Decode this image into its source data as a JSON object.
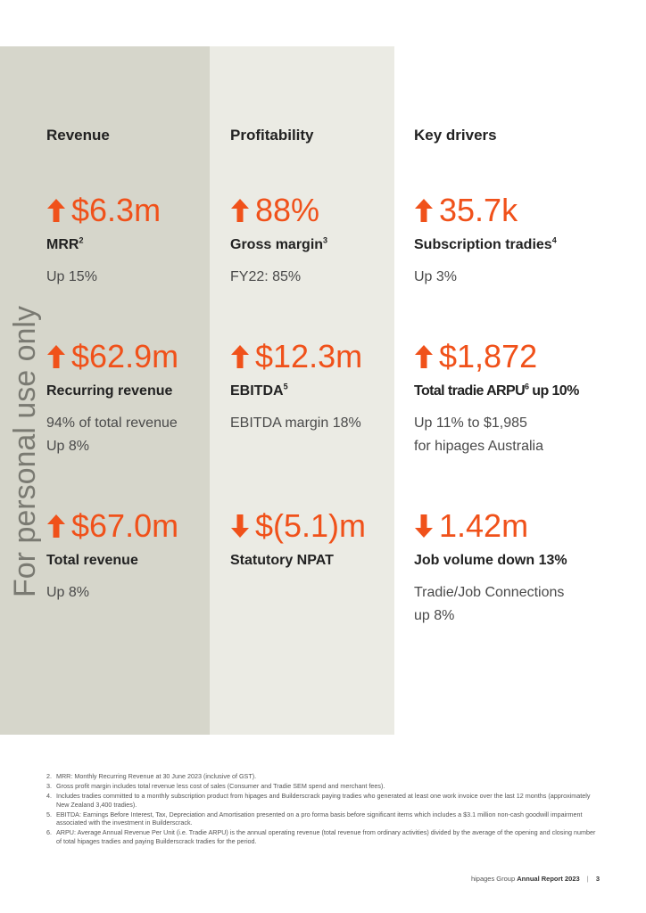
{
  "watermark": "For personal use only",
  "columns": [
    {
      "heading": "Revenue",
      "metrics": [
        {
          "direction": "up",
          "value": "$6.3m",
          "label": "MRR",
          "sup": "2",
          "sub": [
            "Up 15%"
          ]
        },
        {
          "direction": "up",
          "value": "$62.9m",
          "label": "Recurring revenue",
          "sup": "",
          "sub": [
            "94% of total revenue",
            "Up 8%"
          ]
        },
        {
          "direction": "up",
          "value": "$67.0m",
          "label": "Total revenue",
          "sup": "",
          "sub": [
            "Up 8%"
          ]
        }
      ]
    },
    {
      "heading": "Profitability",
      "metrics": [
        {
          "direction": "up",
          "value": "88%",
          "label": "Gross margin",
          "sup": "3",
          "sub": [
            "FY22: 85%"
          ]
        },
        {
          "direction": "up",
          "value": "$12.3m",
          "label": "EBITDA",
          "sup": "5",
          "sub": [
            "EBITDA margin 18%"
          ]
        },
        {
          "direction": "down",
          "value": "$(5.1)m",
          "label": "Statutory NPAT",
          "sup": "",
          "sub": []
        }
      ]
    },
    {
      "heading": "Key drivers",
      "metrics": [
        {
          "direction": "up",
          "value": "35.7k",
          "label": "Subscription tradies",
          "sup": "4",
          "sub": [
            "Up 3%"
          ]
        },
        {
          "direction": "up",
          "value": "$1,872",
          "label": "Total tradie ARPU",
          "sup": "6",
          "label_suffix": " up 10%",
          "sub": [
            "Up 11% to $1,985",
            "for hipages Australia"
          ]
        },
        {
          "direction": "down",
          "value": "1.42m",
          "label": "Job volume down 13%",
          "sup": "",
          "sub": [
            "Tradie/Job Connections",
            "up 8%"
          ]
        }
      ]
    }
  ],
  "footnotes": [
    {
      "num": "2.",
      "text": "MRR: Monthly Recurring Revenue at 30 June 2023 (inclusive of GST)."
    },
    {
      "num": "3.",
      "text": "Gross profit margin includes total revenue less cost of sales (Consumer and Tradie SEM spend and merchant fees)."
    },
    {
      "num": "4.",
      "text": "Includes tradies committed to a monthly subscription product from hipages and Builderscrack paying tradies who generated at least one work invoice over the last 12 months (approximately New Zealand 3,400 tradies)."
    },
    {
      "num": "5.",
      "text": "EBITDA: Earnings Before Interest, Tax, Depreciation and Amortisation presented on a pro forma basis before significant items which includes a $3.1 million non-cash goodwill impairment associated with the investment in Builderscrack."
    },
    {
      "num": "6.",
      "text": "ARPU: Average Annual Revenue Per Unit (i.e. Tradie ARPU) is the annual operating revenue (total revenue from ordinary activities) divided by the average of the opening and closing number of total hipages tradies and paying Builderscrack tradies for the period."
    }
  ],
  "footer": {
    "company": "hipages Group",
    "report": "Annual Report 2023",
    "page": "3"
  },
  "colors": {
    "accent": "#f0511a",
    "panel1": "#d6d6cb",
    "panel2": "#ebebe4"
  }
}
